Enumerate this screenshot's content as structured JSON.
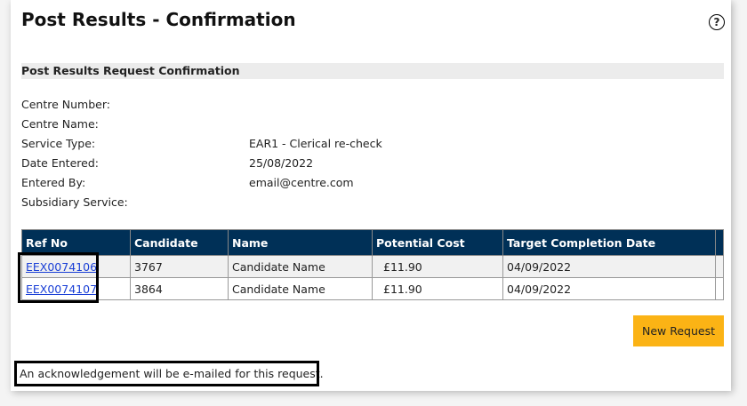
{
  "title": "Post Results - Confirmation",
  "section": "Post Results Request Confirmation",
  "fields": [
    {
      "label": "Centre Number:",
      "value": ""
    },
    {
      "label": "Centre Name:",
      "value": ""
    },
    {
      "label": "Service Type:",
      "value": "EAR1 - Clerical re-check"
    },
    {
      "label": "Date Entered:",
      "value": "25/08/2022"
    },
    {
      "label": "Entered By:",
      "value": "email@centre.com"
    },
    {
      "label": "Subsidiary Service:",
      "value": ""
    }
  ],
  "table": {
    "headers": [
      "Ref No",
      "Candidate",
      "Name",
      "Potential Cost",
      "Target Completion Date",
      ""
    ],
    "rows": [
      [
        "EEX0074106",
        "3767",
        "Candidate Name",
        "£11.90",
        "04/09/2022"
      ],
      [
        "EEX0074107",
        "3864",
        "Candidate Name",
        "£11.90",
        "04/09/2022"
      ]
    ]
  },
  "new_request": "New Request",
  "ack": "An acknowledgement will be e-mailed for this request.",
  "help_icon": "?",
  "colors": {
    "header": "#003057",
    "button": "#fbb315",
    "link": "#1a3fd6"
  }
}
